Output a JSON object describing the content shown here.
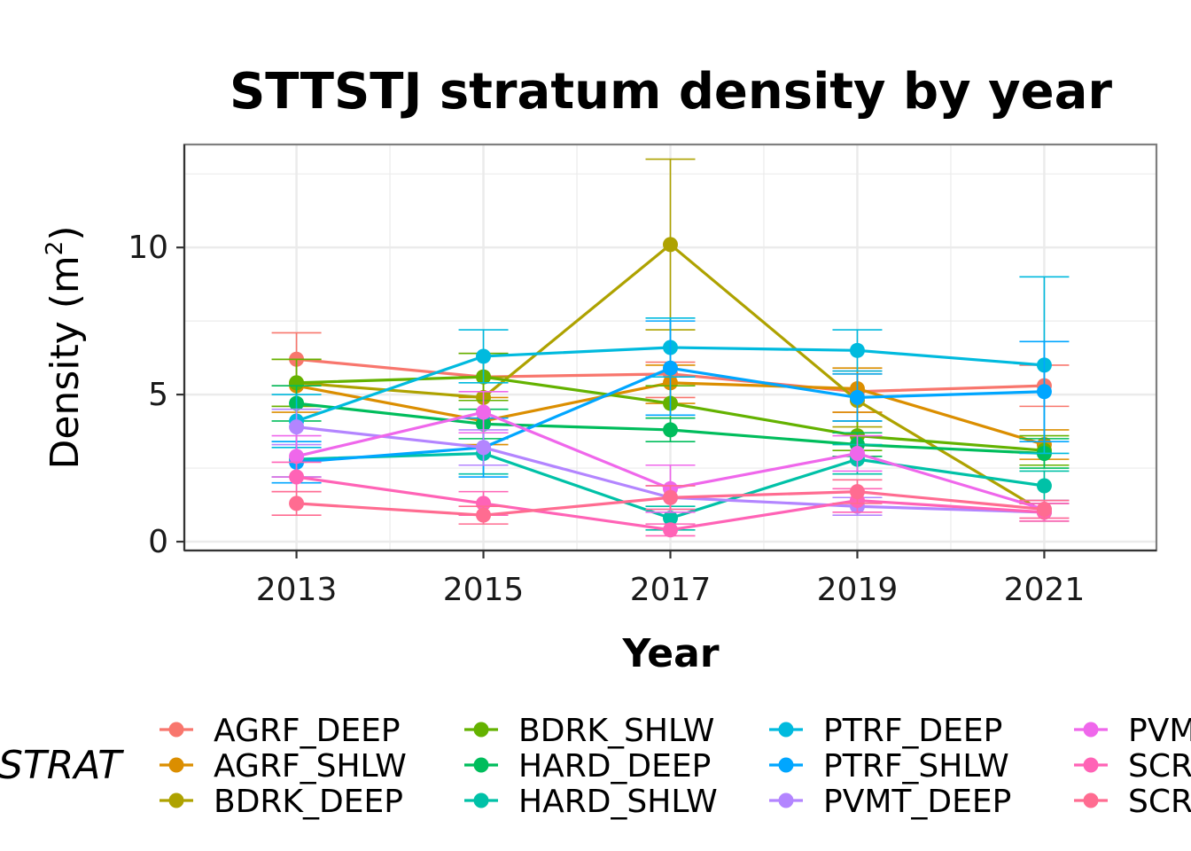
{
  "chart_data": {
    "type": "line",
    "title": "STTSTJ stratum density by year",
    "xlabel": "Year",
    "ylabel": "Density",
    "ylabel_unit_base": "m",
    "ylabel_unit_exp": "2",
    "x": [
      2013,
      2015,
      2017,
      2019,
      2021
    ],
    "x_ticks": [
      "2013",
      "2015",
      "2017",
      "2019",
      "2021"
    ],
    "xlim": [
      2011.8,
      2022.2
    ],
    "y_ticks": [
      0,
      5,
      10
    ],
    "y_tick_labels": [
      "0",
      "5",
      "10"
    ],
    "ylim": [
      -0.3,
      13.5
    ],
    "grid": true,
    "legend_title": "STRAT",
    "legend_position": "bottom",
    "series": [
      {
        "name": "AGRF_DEEP",
        "color": "#F8766D",
        "values": [
          6.2,
          5.6,
          5.7,
          5.1,
          5.3
        ],
        "lower": [
          5.3,
          4.8,
          4.9,
          4.4,
          4.6
        ],
        "upper": [
          7.1,
          6.4,
          6.1,
          5.8,
          6.0
        ]
      },
      {
        "name": "AGRF_SHLW",
        "color": "#DB8E00",
        "values": [
          5.3,
          4.1,
          5.4,
          5.2,
          3.3
        ],
        "lower": [
          4.4,
          3.3,
          4.7,
          4.4,
          2.8
        ],
        "upper": [
          6.2,
          4.9,
          6.0,
          5.9,
          3.8
        ]
      },
      {
        "name": "BDRK_DEEP",
        "color": "#AEA200",
        "values": [
          5.4,
          4.9,
          10.1,
          4.8,
          1.0
        ],
        "lower": [
          4.6,
          4.2,
          7.2,
          3.9,
          0.7
        ],
        "upper": [
          6.2,
          5.6,
          13.0,
          5.7,
          1.3
        ]
      },
      {
        "name": "BDRK_SHLW",
        "color": "#64B200",
        "values": [
          5.4,
          5.6,
          4.7,
          3.6,
          3.1
        ],
        "lower": [
          4.6,
          4.8,
          4.2,
          3.1,
          2.6
        ],
        "upper": [
          6.2,
          6.4,
          5.3,
          4.1,
          3.6
        ]
      },
      {
        "name": "HARD_DEEP",
        "color": "#00BD5C",
        "values": [
          4.7,
          4.0,
          3.8,
          3.3,
          3.0
        ],
        "lower": [
          4.1,
          3.5,
          3.4,
          2.9,
          2.5
        ],
        "upper": [
          5.3,
          4.5,
          4.2,
          3.7,
          3.5
        ]
      },
      {
        "name": "HARD_SHLW",
        "color": "#00C1A7",
        "values": [
          2.8,
          3.0,
          0.8,
          2.8,
          1.9
        ],
        "lower": [
          2.2,
          2.3,
          0.4,
          2.3,
          1.4
        ],
        "upper": [
          3.4,
          3.7,
          1.2,
          3.3,
          2.4
        ]
      },
      {
        "name": "PTRF_DEEP",
        "color": "#00BADE",
        "values": [
          4.1,
          6.3,
          6.6,
          6.5,
          6.0
        ],
        "lower": [
          3.2,
          5.4,
          5.6,
          5.8,
          3.0
        ],
        "upper": [
          5.0,
          7.2,
          7.6,
          7.2,
          9.0
        ]
      },
      {
        "name": "PTRF_SHLW",
        "color": "#00A6FF",
        "values": [
          2.7,
          3.2,
          5.9,
          4.9,
          5.1
        ],
        "lower": [
          2.0,
          2.2,
          4.3,
          4.1,
          3.4
        ],
        "upper": [
          3.4,
          4.2,
          7.5,
          5.7,
          6.8
        ]
      },
      {
        "name": "PVMT_DEEP",
        "color": "#B385FF",
        "values": [
          3.9,
          3.2,
          1.5,
          1.2,
          1.0
        ],
        "lower": [
          3.3,
          2.6,
          1.1,
          0.9,
          0.7
        ],
        "upper": [
          4.5,
          3.8,
          1.9,
          1.5,
          1.3
        ]
      },
      {
        "name": "PVMT_SHLW",
        "color": "#EF67EB",
        "values": [
          2.9,
          4.4,
          1.8,
          3.0,
          1.1
        ],
        "lower": [
          2.2,
          3.7,
          1.0,
          2.4,
          0.8
        ],
        "upper": [
          3.6,
          5.1,
          2.6,
          3.6,
          1.4
        ]
      },
      {
        "name": "SCR_DEEP",
        "color": "#FF63B6",
        "values": [
          2.2,
          1.3,
          0.4,
          1.4,
          1.0
        ],
        "lower": [
          1.7,
          0.9,
          0.2,
          1.0,
          0.7
        ],
        "upper": [
          2.7,
          1.7,
          0.6,
          1.8,
          1.3
        ]
      },
      {
        "name": "SCR_SHLW",
        "color": "#FF6C91",
        "values": [
          1.3,
          0.9,
          1.5,
          1.7,
          1.1
        ],
        "lower": [
          0.9,
          0.6,
          1.1,
          1.3,
          0.8
        ],
        "upper": [
          1.7,
          1.2,
          1.9,
          2.1,
          1.4
        ]
      }
    ]
  }
}
